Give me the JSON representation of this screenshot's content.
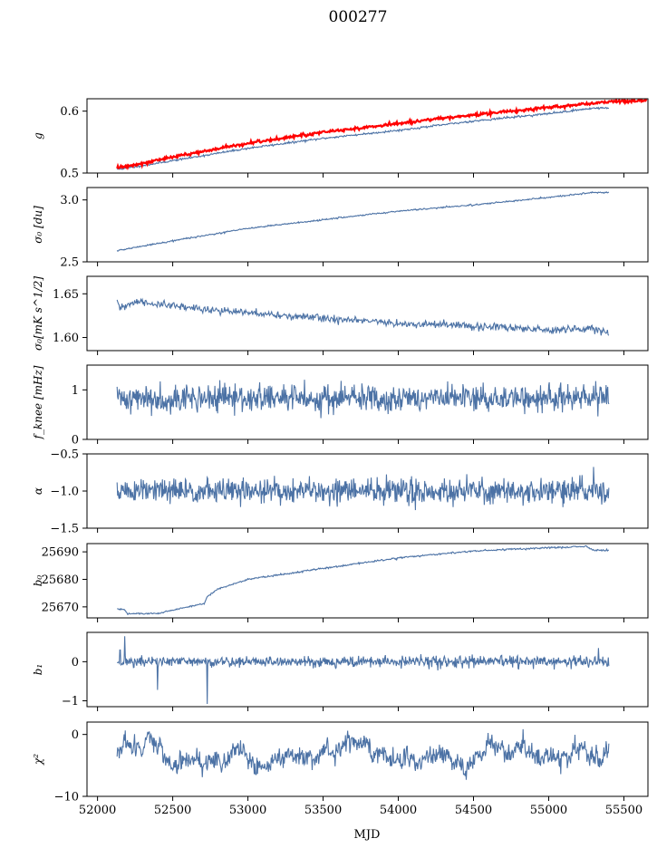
{
  "figure": {
    "title": "000277",
    "xlabel": "MJD",
    "x_ticks": [
      "52000",
      "52500",
      "53000",
      "53500",
      "54000",
      "54500",
      "55000",
      "55500"
    ]
  },
  "chart_data": {
    "type": "line",
    "title": "000277",
    "xlabel": "MJD",
    "xlim": [
      51930,
      55660
    ],
    "x_ticks": [
      52000,
      52500,
      53000,
      53500,
      54000,
      54500,
      55000,
      55500
    ],
    "x_range": [
      52130,
      55400
    ],
    "colors": {
      "main": "#4c72a5",
      "reference": "#ff0000"
    },
    "panels": [
      {
        "id": "g",
        "ylabel": "g",
        "ylim": [
          0.5,
          0.62
        ],
        "yticks": [
          0.5,
          0.6
        ],
        "ytick_labels": [
          "0.5",
          "0.6"
        ],
        "series": [
          {
            "kind": "trend",
            "color": "#4c72a5",
            "noise": 0.0008,
            "seed": 11,
            "points": [
              [
                52130,
                0.506
              ],
              [
                52200,
                0.508
              ],
              [
                52500,
                0.52
              ],
              [
                53000,
                0.54
              ],
              [
                53500,
                0.556
              ],
              [
                54000,
                0.569
              ],
              [
                54500,
                0.584
              ],
              [
                55000,
                0.596
              ],
              [
                55300,
                0.605
              ],
              [
                55400,
                0.605
              ]
            ]
          },
          {
            "kind": "trend",
            "color": "#ff0000",
            "noise": 0.0012,
            "width": 2.2,
            "seed": 12,
            "points": [
              [
                52130,
                0.509
              ],
              [
                52200,
                0.511
              ],
              [
                52500,
                0.526
              ],
              [
                53000,
                0.548
              ],
              [
                53500,
                0.566
              ],
              [
                54000,
                0.58
              ],
              [
                54500,
                0.594
              ],
              [
                55000,
                0.606
              ],
              [
                55400,
                0.615
              ],
              [
                55650,
                0.617
              ]
            ]
          }
        ]
      },
      {
        "id": "sigma0-du",
        "ylabel": "σ₀ [du]",
        "ylim": [
          2.5,
          3.1
        ],
        "yticks": [
          2.5,
          3.0
        ],
        "ytick_labels": [
          "2.5",
          "3.0"
        ],
        "series": [
          {
            "kind": "trend",
            "color": "#4c72a5",
            "noise": 0.003,
            "seed": 21,
            "points": [
              [
                52130,
                2.59
              ],
              [
                52500,
                2.67
              ],
              [
                53000,
                2.77
              ],
              [
                53500,
                2.84
              ],
              [
                54000,
                2.91
              ],
              [
                54500,
                2.96
              ],
              [
                55000,
                3.02
              ],
              [
                55300,
                3.06
              ],
              [
                55400,
                3.06
              ]
            ]
          }
        ]
      },
      {
        "id": "sigma0-mk",
        "ylabel": "σ₀[mK s^1/2]",
        "ylim": [
          1.585,
          1.67
        ],
        "yticks": [
          1.6,
          1.65
        ],
        "ytick_labels": [
          "1.60",
          "1.65"
        ],
        "series": [
          {
            "kind": "trend",
            "color": "#4c72a5",
            "noise": 0.0022,
            "seed": 31,
            "points": [
              [
                52130,
                1.64
              ],
              [
                52150,
                1.633
              ],
              [
                52250,
                1.641
              ],
              [
                52500,
                1.636
              ],
              [
                53000,
                1.628
              ],
              [
                53500,
                1.622
              ],
              [
                54000,
                1.616
              ],
              [
                54500,
                1.613
              ],
              [
                55000,
                1.609
              ],
              [
                55300,
                1.611
              ],
              [
                55400,
                1.604
              ]
            ]
          }
        ]
      },
      {
        "id": "fknee",
        "ylabel": "f_knee [mHz]",
        "ylim": [
          0,
          1.5
        ],
        "yticks": [
          0,
          1
        ],
        "ytick_labels": [
          "0",
          "1"
        ],
        "series": [
          {
            "kind": "noise",
            "color": "#4c72a5",
            "mean": 0.83,
            "std": 0.14,
            "n": 900,
            "seed": 41
          }
        ]
      },
      {
        "id": "alpha",
        "ylabel": "α",
        "ylim": [
          -1.5,
          -0.5
        ],
        "yticks": [
          -1.5,
          -1.0,
          -0.5
        ],
        "ytick_labels": [
          "−1.5",
          "−1.0",
          "−0.5"
        ],
        "series": [
          {
            "kind": "noise",
            "color": "#4c72a5",
            "mean": -1.0,
            "std": 0.085,
            "n": 900,
            "seed": 51
          }
        ]
      },
      {
        "id": "b0",
        "ylabel": "b₀",
        "ylim": [
          25666,
          25693
        ],
        "yticks": [
          25670,
          25680,
          25690
        ],
        "ytick_labels": [
          "25670",
          "25680",
          "25690"
        ],
        "series": [
          {
            "kind": "trend",
            "color": "#4c72a5",
            "noise": 0.15,
            "seed": 61,
            "points": [
              [
                52130,
                25669.2
              ],
              [
                52180,
                25669.0
              ],
              [
                52200,
                25667.5
              ],
              [
                52400,
                25667.6
              ],
              [
                52600,
                25670.0
              ],
              [
                52710,
                25671.2
              ],
              [
                52730,
                25673.8
              ],
              [
                52800,
                25676.5
              ],
              [
                53000,
                25680.0
              ],
              [
                53500,
                25684.0
              ],
              [
                54000,
                25687.8
              ],
              [
                54500,
                25690.3
              ],
              [
                55000,
                25691.5
              ],
              [
                55250,
                25692.0
              ],
              [
                55300,
                25690.6
              ],
              [
                55400,
                25690.6
              ]
            ]
          }
        ]
      },
      {
        "id": "b1",
        "ylabel": "b₁",
        "ylim": [
          -1.15,
          0.75
        ],
        "yticks": [
          -1,
          0
        ],
        "ytick_labels": [
          "−1",
          "0"
        ],
        "series": [
          {
            "kind": "noise",
            "color": "#4c72a5",
            "mean": 0.0,
            "std": 0.07,
            "n": 900,
            "seed": 71,
            "spikes": [
              [
                52150,
                0.3
              ],
              [
                52180,
                0.65
              ],
              [
                52400,
                -0.72
              ],
              [
                52730,
                -1.08
              ],
              [
                55330,
                0.35
              ]
            ]
          }
        ]
      },
      {
        "id": "chi2",
        "ylabel": "χ²",
        "ylim": [
          -10,
          2
        ],
        "yticks": [
          -10,
          0
        ],
        "ytick_labels": [
          "−10",
          "0"
        ],
        "series": [
          {
            "kind": "wander",
            "color": "#4c72a5",
            "mean": -3.2,
            "amp": 1.2,
            "std": 0.7,
            "n": 900,
            "seed": 81
          }
        ]
      }
    ]
  }
}
